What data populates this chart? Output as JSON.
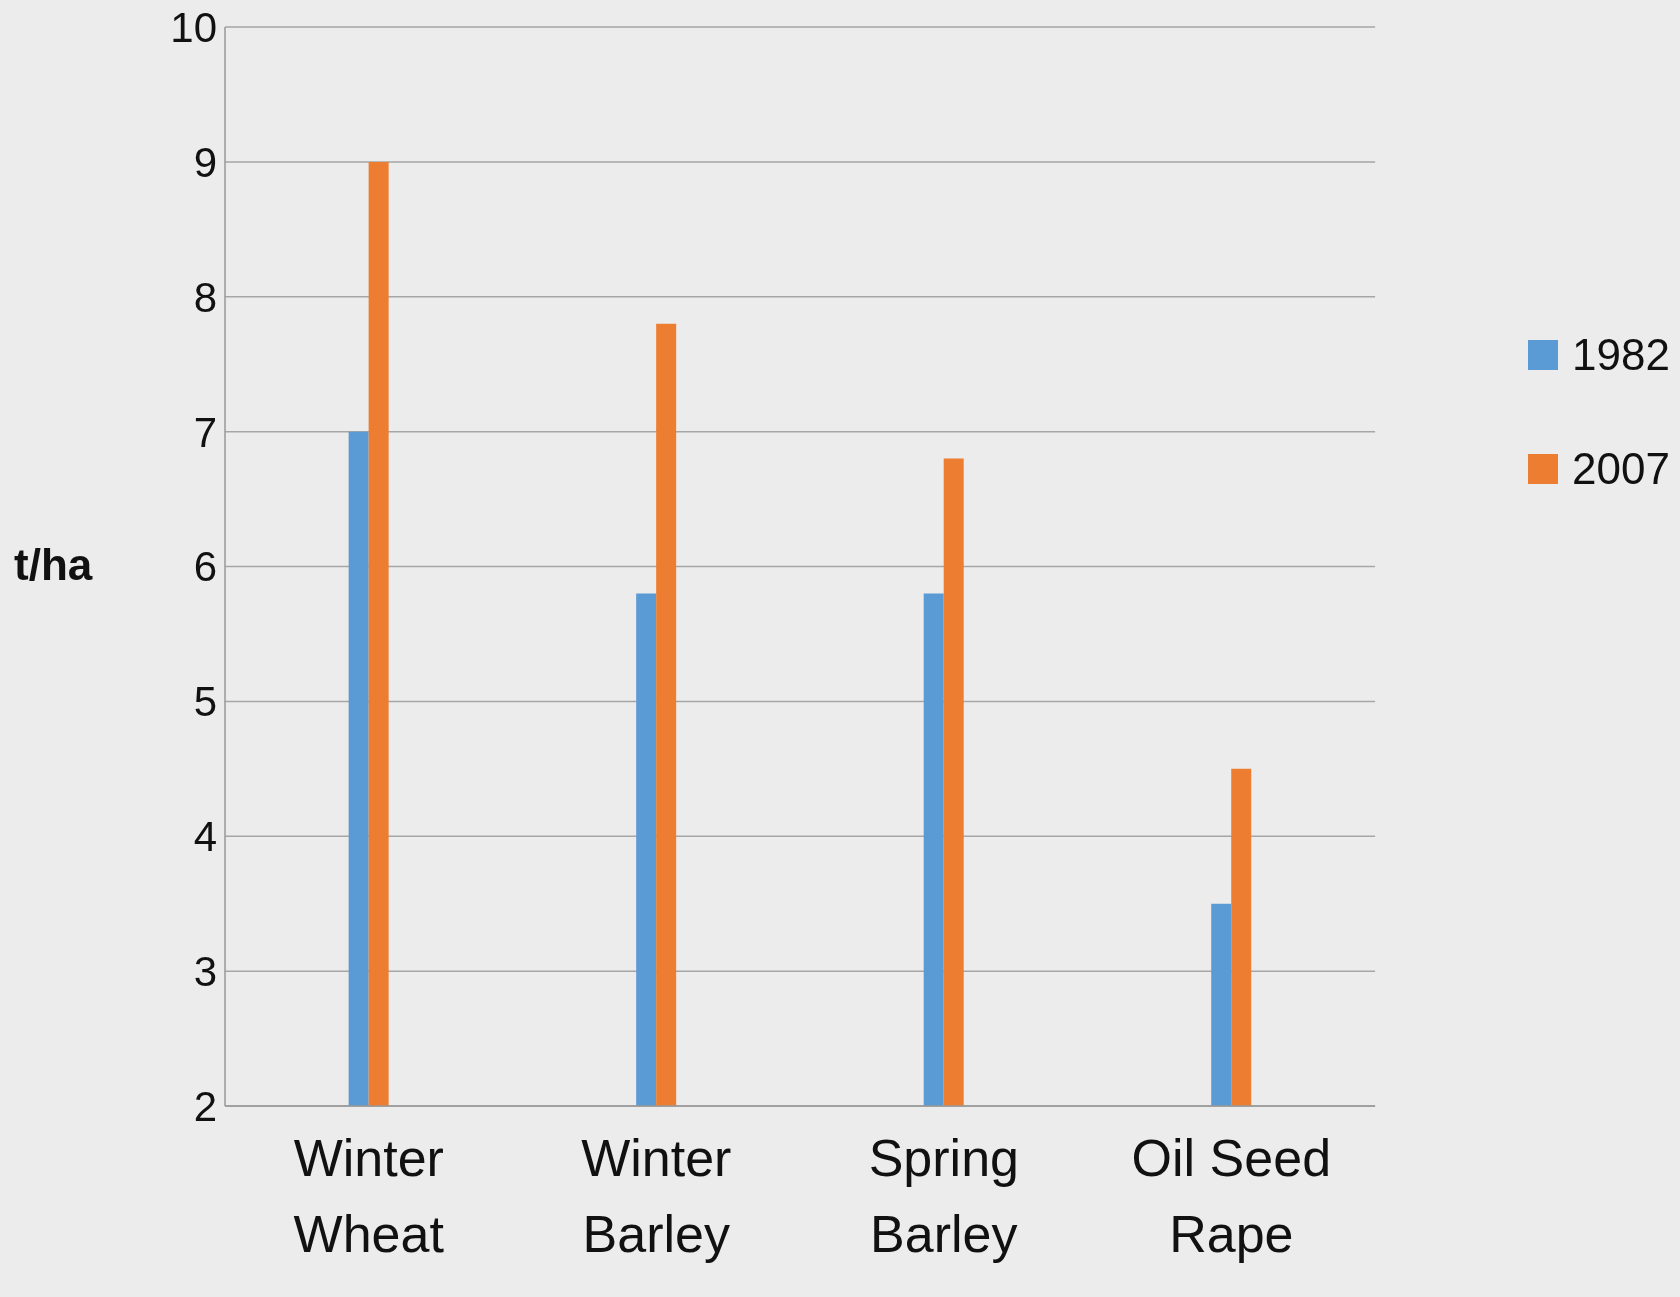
{
  "chart_data": {
    "type": "bar",
    "ylabel": "t/ha",
    "categories": [
      "Winter Wheat",
      "Winter Barley",
      "Spring Barley",
      "Oil Seed Rape"
    ],
    "series": [
      {
        "name": "1982",
        "color": "#5b9bd5",
        "values": [
          7,
          5.8,
          5.8,
          3.5
        ]
      },
      {
        "name": "2007",
        "color": "#ed7d31",
        "values": [
          9,
          7.8,
          6.8,
          4.5
        ]
      }
    ],
    "ylim": [
      2,
      10
    ],
    "yticks": [
      2,
      3,
      4,
      5,
      6,
      7,
      8,
      9,
      10
    ],
    "grid": "y",
    "legend": "right"
  }
}
